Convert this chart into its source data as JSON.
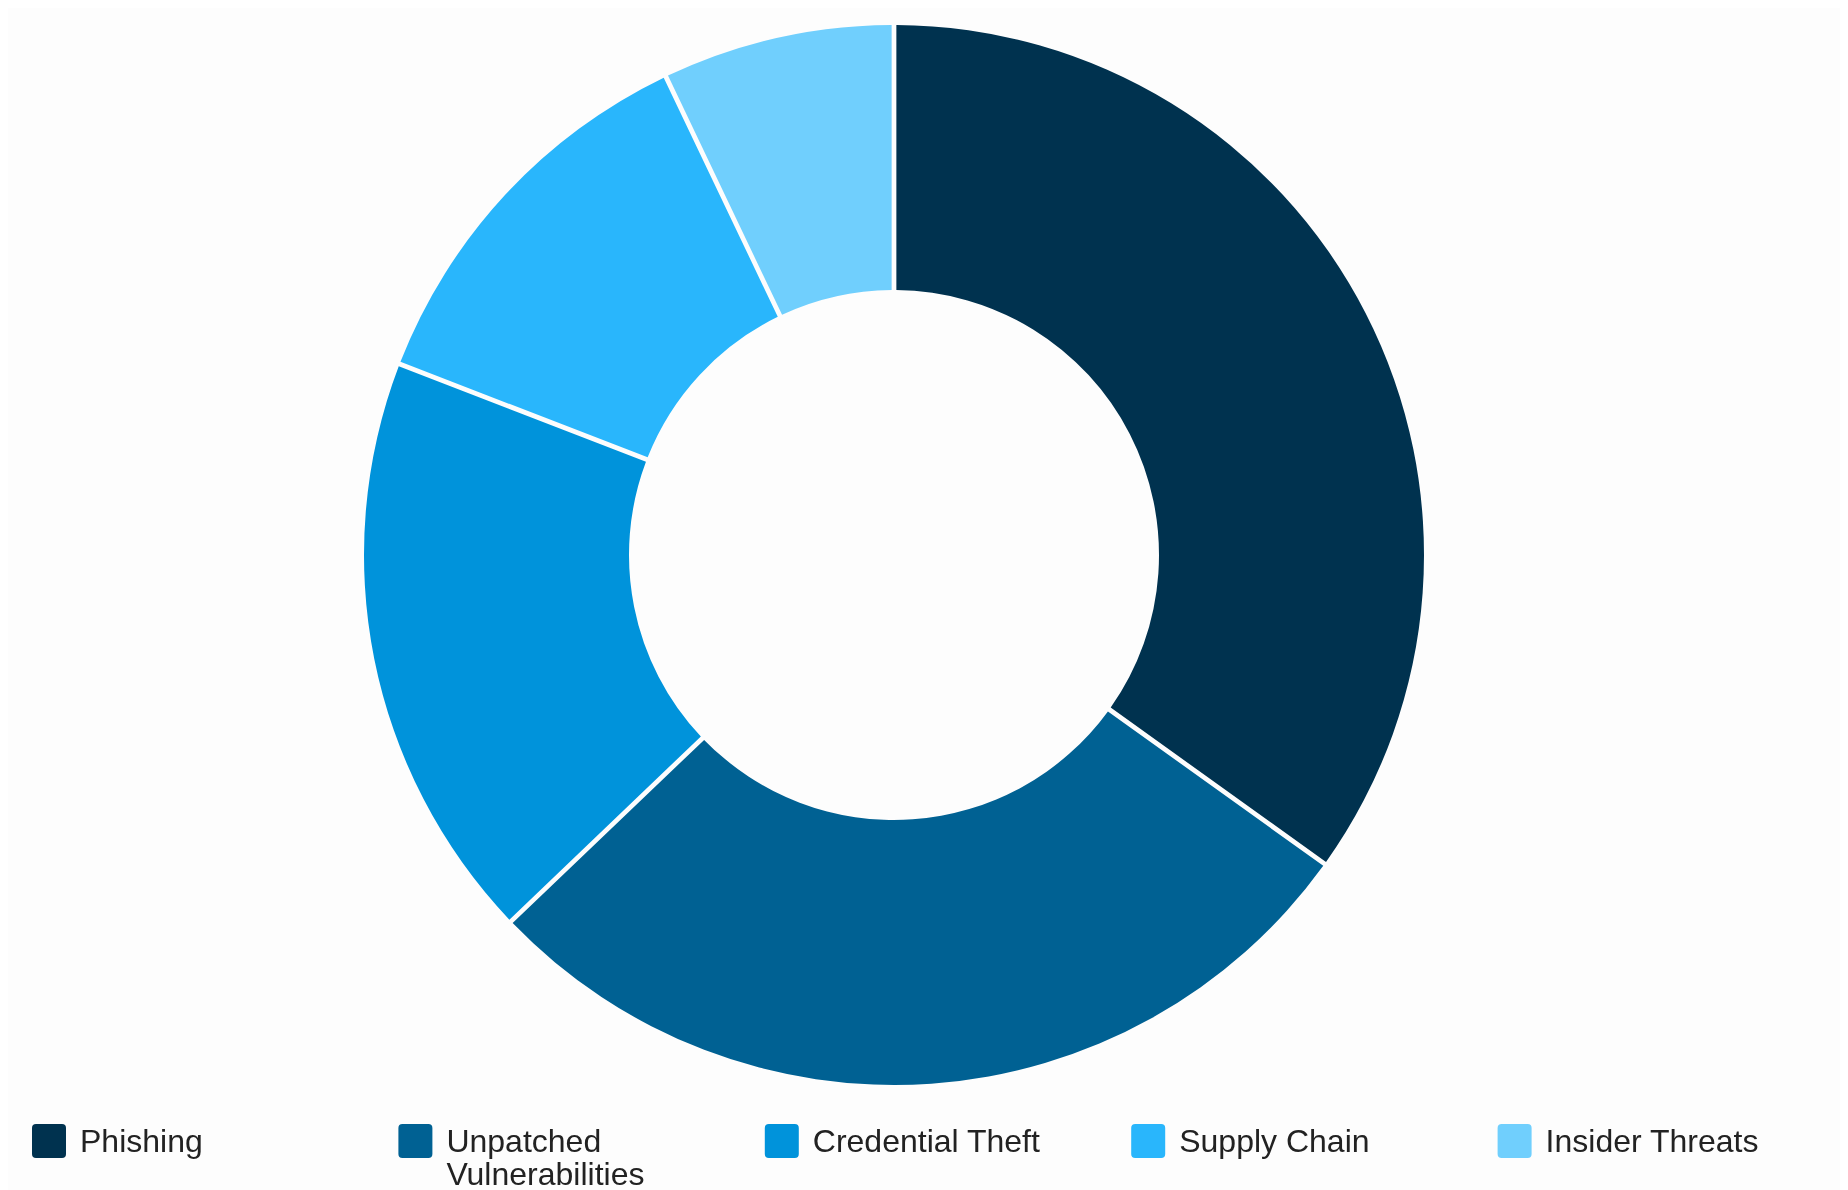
{
  "chart_data": {
    "type": "donut",
    "categories": [
      "Phishing",
      "Unpatched Vulnerabilities",
      "Credential Theft",
      "Supply Chain",
      "Insider Threats"
    ],
    "values": [
      35,
      28,
      18,
      12,
      7
    ],
    "colors": [
      "#00324f",
      "#006193",
      "#0093db",
      "#29b6fc",
      "#70cffd"
    ],
    "legend": "bottom"
  }
}
